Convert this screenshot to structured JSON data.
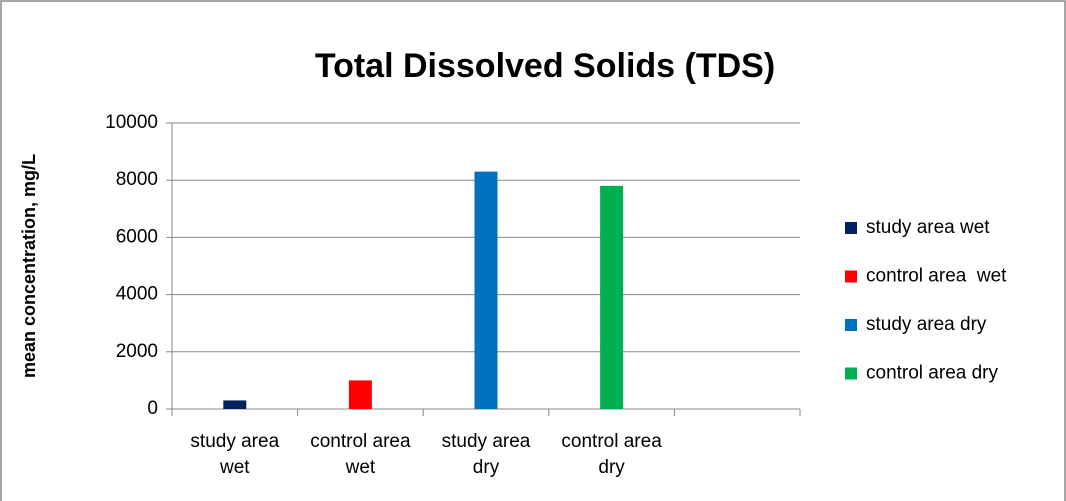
{
  "chart_data": {
    "type": "bar",
    "title": "Total Dissolved Solids (TDS)",
    "y_label": "mean concentration, mg/L",
    "categories": [
      "study area wet",
      "control area  wet",
      "study area dry",
      "control area dry",
      null
    ],
    "series": [
      {
        "name": "study area wet",
        "color": "#002060",
        "values": [
          300,
          null,
          null,
          null,
          null
        ]
      },
      {
        "name": "control area  wet",
        "color": "#ff0000",
        "values": [
          null,
          1000,
          null,
          null,
          null
        ]
      },
      {
        "name": "study area dry",
        "color": "#0070c0",
        "values": [
          null,
          null,
          8300,
          null,
          null
        ]
      },
      {
        "name": "control area dry",
        "color": "#00b050",
        "values": [
          null,
          null,
          null,
          7800,
          null
        ]
      }
    ],
    "ylim": [
      0,
      10000
    ],
    "yticks": [
      0,
      2000,
      4000,
      6000,
      8000,
      10000
    ],
    "grid": true,
    "legend": "right"
  }
}
